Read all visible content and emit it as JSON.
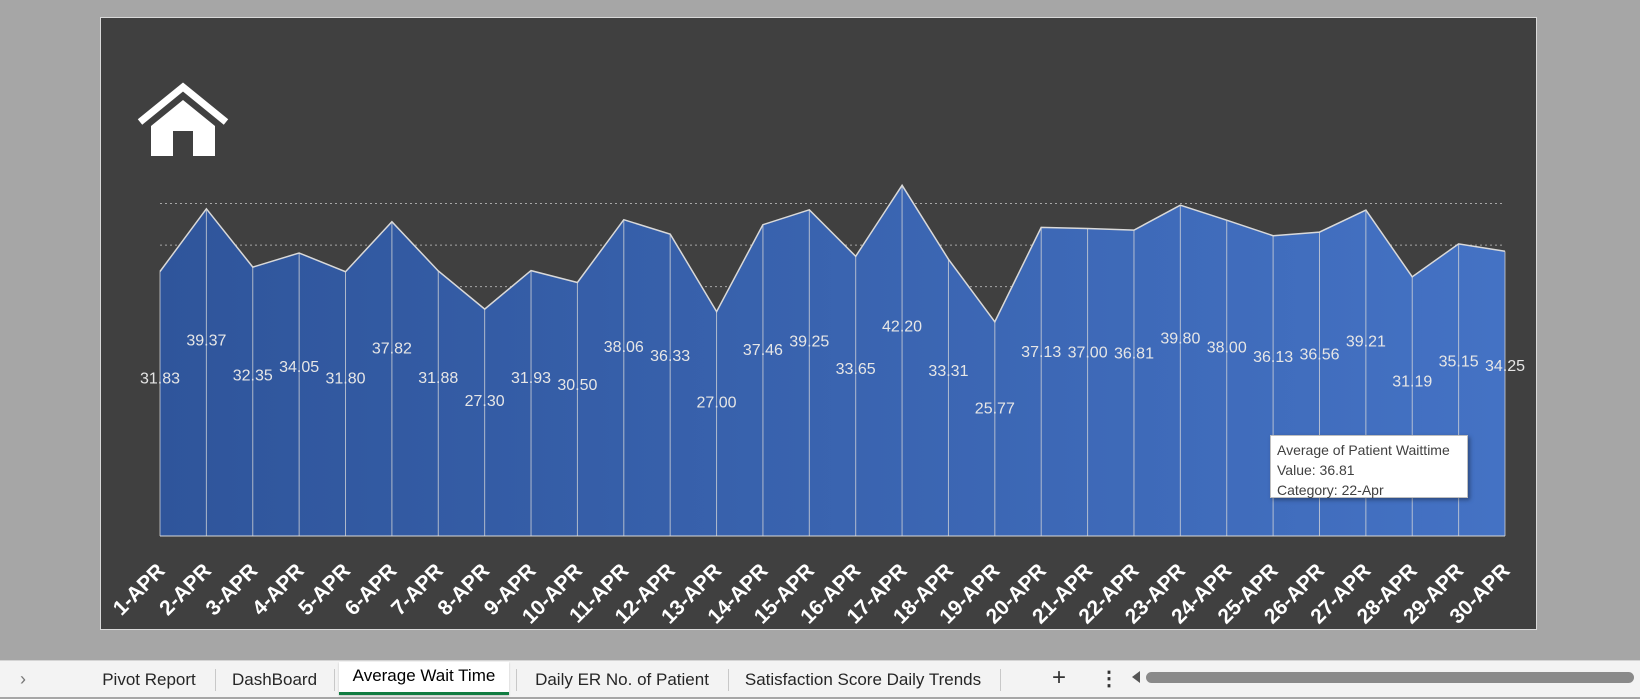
{
  "chart_data": {
    "type": "area",
    "categories": [
      "1-Apr",
      "2-Apr",
      "3-Apr",
      "4-Apr",
      "5-Apr",
      "6-Apr",
      "7-Apr",
      "8-Apr",
      "9-Apr",
      "10-Apr",
      "11-Apr",
      "12-Apr",
      "13-Apr",
      "14-Apr",
      "15-Apr",
      "16-Apr",
      "17-Apr",
      "18-Apr",
      "19-Apr",
      "20-Apr",
      "21-Apr",
      "22-Apr",
      "23-Apr",
      "24-Apr",
      "25-Apr",
      "26-Apr",
      "27-Apr",
      "28-Apr",
      "29-Apr",
      "30-Apr"
    ],
    "series": [
      {
        "name": "Average of Patient Waittime",
        "values": [
          31.83,
          39.37,
          32.35,
          34.05,
          31.8,
          37.82,
          31.88,
          27.3,
          31.93,
          30.5,
          38.06,
          36.33,
          27.0,
          37.46,
          39.25,
          33.65,
          42.2,
          33.31,
          25.77,
          37.13,
          37.0,
          36.81,
          39.8,
          38.0,
          36.13,
          36.56,
          39.21,
          31.19,
          35.15,
          34.25
        ]
      }
    ],
    "ylim": [
      0,
      45
    ],
    "gridlines": [
      25,
      30,
      35,
      40
    ],
    "grid": true,
    "legend": "none",
    "data_labels": true,
    "colors": {
      "fill_left": "#2f559b",
      "fill_right": "#4472c4",
      "line": "#d9d9d9",
      "grid": "#a6a6a6",
      "background": "#404040"
    }
  },
  "tooltip": {
    "series": "Average of Patient Waittime",
    "value": "Value: 36.81",
    "category": "Category: 22-Apr"
  },
  "sheet_tabs": {
    "tabs": [
      "Pivot Report",
      "DashBoard",
      "Average Wait Time",
      "Daily ER No. of Patient",
      "Satisfaction Score Daily Trends"
    ],
    "active": "Average Wait Time",
    "add_icon": "plus-icon",
    "more_icon": "vertical-ellipsis-icon"
  },
  "home_icon": "home-icon"
}
